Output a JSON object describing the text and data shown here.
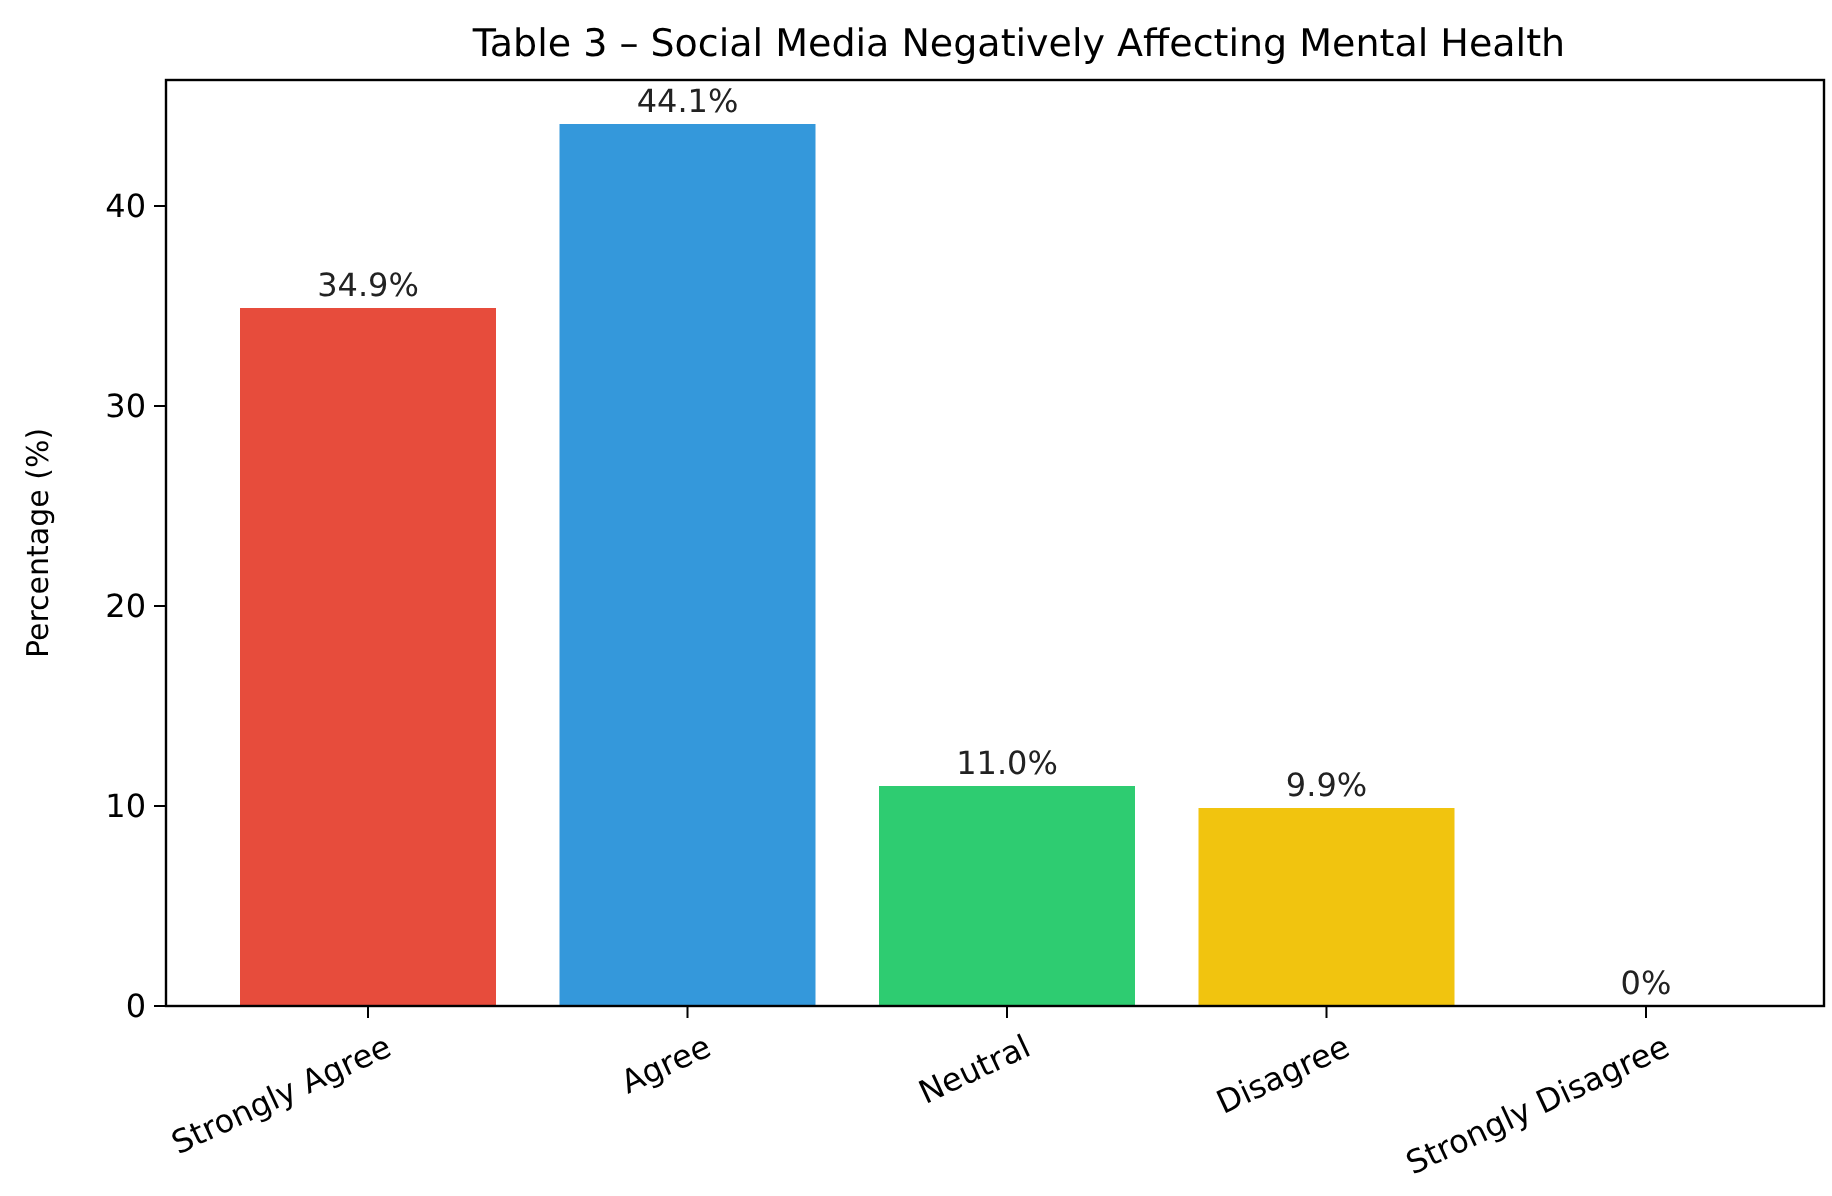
{
  "chart_data": {
    "type": "bar",
    "title": "Table 3 – Social Media Negatively Affecting Mental Health",
    "ylabel": "Percentage (%)",
    "categories": [
      "Strongly Agree",
      "Agree",
      "Neutral",
      "Disagree",
      "Strongly Disagree"
    ],
    "values": [
      34.9,
      44.1,
      11.0,
      9.9,
      0
    ],
    "colors": [
      "#e74c3c",
      "#3498db",
      "#2ecc71",
      "#f1c40f",
      "#9b59b6"
    ],
    "value_labels": [
      "34.9%",
      "44.1%",
      "11.0%",
      "9.9%",
      "0%"
    ],
    "ylim": [
      0,
      46.3
    ],
    "yticks": [
      0,
      10,
      20,
      30,
      40
    ],
    "grid": false
  }
}
